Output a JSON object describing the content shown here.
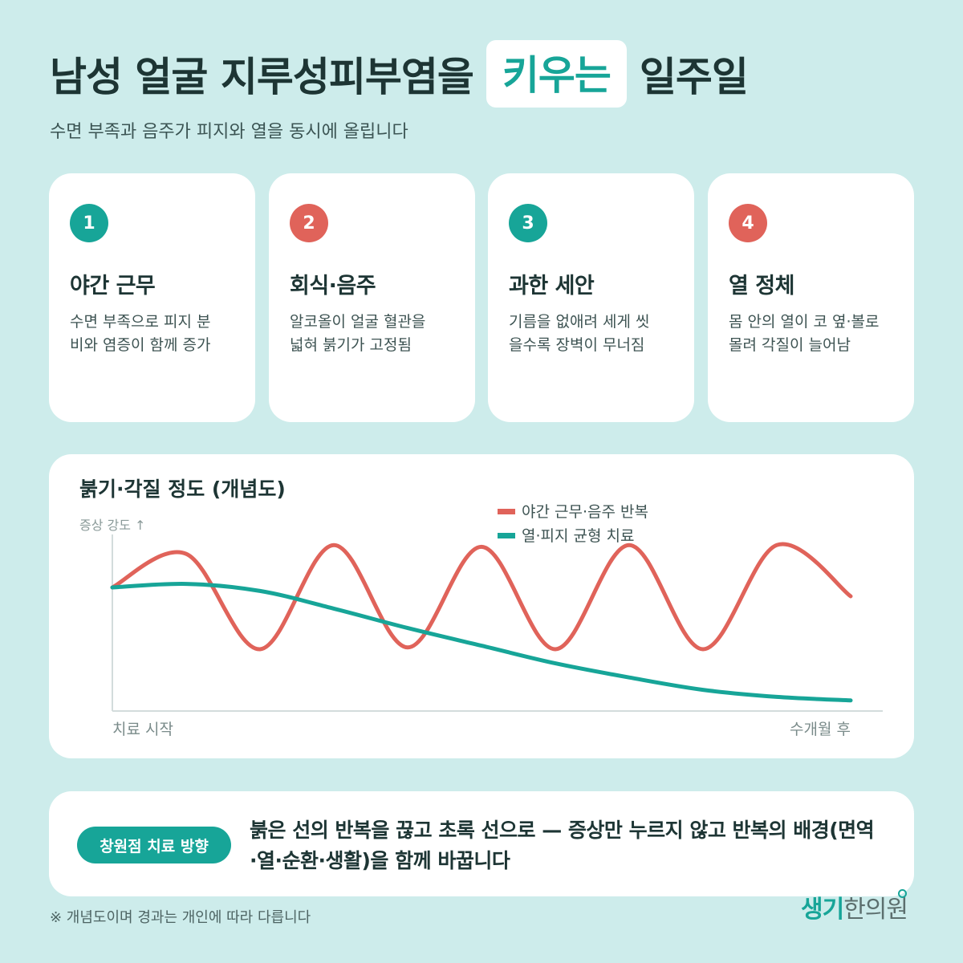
{
  "header": {
    "title_before": "남성 얼굴 지루성피부염을",
    "title_highlight": "키우는",
    "title_after": "일주일",
    "subtitle": "수면 부족과 음주가 피지와 열을 동시에 올립니다"
  },
  "colors": {
    "accent_teal": "#17a598",
    "accent_red": "#e0635a",
    "background": "#cdeceb"
  },
  "cards": [
    {
      "number": "1",
      "title": "야간 근무",
      "desc_line1": "수면 부족으로 피지 분",
      "desc_line2": "비와 염증이 함께 증가",
      "badge_color": "teal"
    },
    {
      "number": "2",
      "title": "회식·음주",
      "desc_line1": "알코올이 얼굴 혈관을",
      "desc_line2": "넓혀 붉기가 고정됨",
      "badge_color": "red"
    },
    {
      "number": "3",
      "title": "과한 세안",
      "desc_line1": "기름을 없애려 세게 씻",
      "desc_line2": "을수록 장벽이 무너짐",
      "badge_color": "teal"
    },
    {
      "number": "4",
      "title": "열 정체",
      "desc_line1": "몸 안의 열이 코 옆·볼로",
      "desc_line2": "몰려 각질이 늘어남",
      "badge_color": "red"
    }
  ],
  "chart_data": {
    "type": "line",
    "title": "붉기·각질 정도 (개념도)",
    "ylabel": "증상 강도 ↑",
    "x_start_label": "치료 시작",
    "x_end_label": "수개월 후",
    "x": [
      0,
      10,
      20,
      30,
      40,
      50,
      60,
      70,
      80,
      90,
      100
    ],
    "ylim": [
      0,
      10
    ],
    "legend_position": "top-right",
    "series": [
      {
        "name": "야간 근무·음주 반복",
        "color": "#e0635a",
        "values": [
          7.0,
          8.9,
          3.5,
          9.4,
          3.6,
          9.3,
          3.5,
          9.4,
          3.5,
          9.4,
          6.5
        ]
      },
      {
        "name": "열·피지 균형 치료",
        "color": "#17a598",
        "values": [
          7.0,
          7.2,
          6.8,
          5.8,
          4.7,
          3.7,
          2.7,
          1.9,
          1.2,
          0.8,
          0.6
        ]
      }
    ]
  },
  "bottom": {
    "badge": "창원점 치료 방향",
    "text_line1": "붉은 선의 반복을 끊고 초록 선으로 — 증상만 누르지 않고 반복의 배경(면역",
    "text_line2": "·열·순환·생활)을 함께 바꿉니다"
  },
  "footnote": "※ 개념도이며 경과는 개인에 따라 다릅니다",
  "logo": {
    "part1": "생기",
    "part2": "한의원"
  }
}
